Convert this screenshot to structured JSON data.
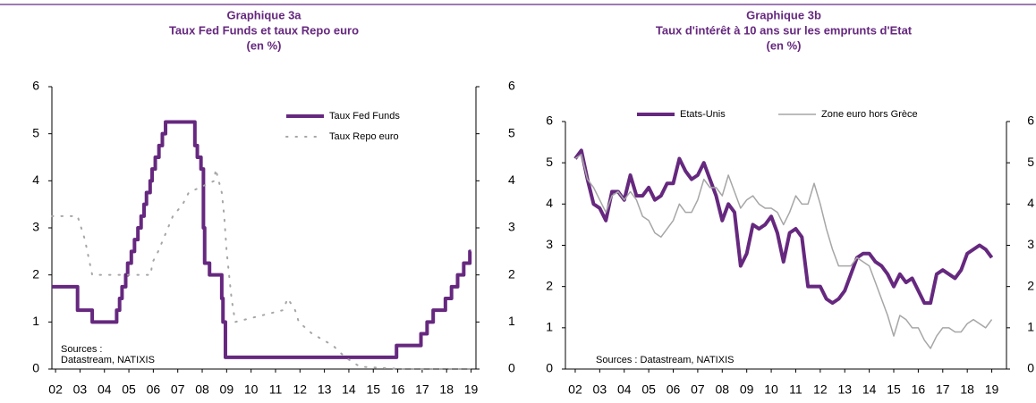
{
  "chart_data": [
    {
      "type": "line",
      "title": [
        "Graphique 3a",
        "Taux Fed Funds et taux Repo euro",
        "(en %)"
      ],
      "annotations": [
        "Sources :",
        "Datastream,  NATIXIS"
      ],
      "legend": "upper right",
      "xlim": [
        2001.85,
        2019.2
      ],
      "xticks": [
        {
          "value": 2002,
          "label": "02"
        },
        {
          "value": 2003,
          "label": "03"
        },
        {
          "value": 2004,
          "label": "04"
        },
        {
          "value": 2005,
          "label": "05"
        },
        {
          "value": 2006,
          "label": "06"
        },
        {
          "value": 2007,
          "label": "07"
        },
        {
          "value": 2008,
          "label": "08"
        },
        {
          "value": 2009,
          "label": "09"
        },
        {
          "value": 2010,
          "label": "10"
        },
        {
          "value": 2011,
          "label": "11"
        },
        {
          "value": 2012,
          "label": "12"
        },
        {
          "value": 2013,
          "label": "13"
        },
        {
          "value": 2014,
          "label": "14"
        },
        {
          "value": 2015,
          "label": "15"
        },
        {
          "value": 2016,
          "label": "16"
        },
        {
          "value": 2017,
          "label": "17"
        },
        {
          "value": 2018,
          "label": "18"
        },
        {
          "value": 2019,
          "label": "19"
        }
      ],
      "ylim": [
        0,
        6
      ],
      "yticks": [
        0,
        1,
        2,
        3,
        4,
        5,
        6
      ],
      "y2lim": [
        0,
        6
      ],
      "y2ticks": [
        0,
        1,
        2,
        3,
        4,
        5,
        6
      ],
      "series": [
        {
          "name": "Taux Fed Funds",
          "color": "#66287f",
          "style": "step",
          "line_width": 4,
          "x": [
            2001.85,
            2002.9,
            2003.5,
            2004.5,
            2004.62,
            2004.72,
            2004.87,
            2004.95,
            2005.1,
            2005.23,
            2005.37,
            2005.5,
            2005.62,
            2005.72,
            2005.87,
            2005.95,
            2006.08,
            2006.23,
            2006.37,
            2006.5,
            2007.7,
            2007.8,
            2007.95,
            2008.05,
            2008.1,
            2008.3,
            2008.8,
            2008.85,
            2008.95,
            2015.95,
            2016.95,
            2017.2,
            2017.45,
            2017.95,
            2018.2,
            2018.45,
            2018.7,
            2018.95,
            2019.0
          ],
          "values": [
            1.75,
            1.25,
            1.0,
            1.25,
            1.5,
            1.75,
            2.0,
            2.25,
            2.5,
            2.75,
            3.0,
            3.25,
            3.5,
            3.75,
            4.0,
            4.25,
            4.5,
            4.75,
            5.0,
            5.25,
            4.75,
            4.5,
            4.25,
            3.0,
            2.25,
            2.0,
            1.5,
            1.0,
            0.25,
            0.5,
            0.75,
            1.0,
            1.25,
            1.5,
            1.75,
            2.0,
            2.25,
            2.5,
            2.5
          ]
        },
        {
          "name": "Taux Repo euro",
          "color": "#a6a6a6",
          "style": "dotted",
          "line_width": 2,
          "x": [
            2001.85,
            2002.9,
            2003.2,
            2003.5,
            2005.9,
            2005.95,
            2006.2,
            2006.4,
            2006.6,
            2006.8,
            2007.2,
            2007.45,
            2008.5,
            2008.55,
            2008.8,
            2008.9,
            2009.0,
            2009.1,
            2009.2,
            2009.35,
            2011.3,
            2011.5,
            2011.8,
            2011.95,
            2012.5,
            2013.35,
            2013.85,
            2014.45,
            2016.2,
            2019.0
          ],
          "values": [
            3.25,
            3.25,
            2.75,
            2.0,
            2.0,
            2.25,
            2.5,
            2.75,
            3.0,
            3.25,
            3.5,
            3.75,
            4.0,
            4.25,
            3.75,
            3.25,
            2.5,
            2.0,
            1.5,
            1.0,
            1.25,
            1.5,
            1.25,
            1.0,
            0.75,
            0.5,
            0.25,
            0.05,
            0.0,
            0.0
          ]
        }
      ]
    },
    {
      "type": "line",
      "title": [
        "Graphique 3b",
        "Taux d'intérêt à 10 ans sur les emprunts d'Etat",
        "(en %)"
      ],
      "annotations": [
        "Sources : Datastream,  NATIXIS"
      ],
      "legend": "upper center",
      "xlim": [
        2001.6,
        2019.6
      ],
      "xticks": [
        {
          "value": 2002,
          "label": "02"
        },
        {
          "value": 2003,
          "label": "03"
        },
        {
          "value": 2004,
          "label": "04"
        },
        {
          "value": 2005,
          "label": "05"
        },
        {
          "value": 2006,
          "label": "06"
        },
        {
          "value": 2007,
          "label": "07"
        },
        {
          "value": 2008,
          "label": "08"
        },
        {
          "value": 2009,
          "label": "09"
        },
        {
          "value": 2010,
          "label": "10"
        },
        {
          "value": 2011,
          "label": "11"
        },
        {
          "value": 2012,
          "label": "12"
        },
        {
          "value": 2013,
          "label": "13"
        },
        {
          "value": 2014,
          "label": "14"
        },
        {
          "value": 2015,
          "label": "15"
        },
        {
          "value": 2016,
          "label": "16"
        },
        {
          "value": 2017,
          "label": "17"
        },
        {
          "value": 2018,
          "label": "18"
        },
        {
          "value": 2019,
          "label": "19"
        }
      ],
      "ylim": [
        0,
        6
      ],
      "yticks": [
        0,
        1,
        2,
        3,
        4,
        5,
        6
      ],
      "y2lim": [
        0,
        6
      ],
      "y2ticks": [
        0,
        1,
        2,
        3,
        4,
        5,
        6
      ],
      "series": [
        {
          "name": "Etats-Unis",
          "color": "#66287f",
          "style": "solid",
          "line_width": 4,
          "x": [
            2002,
            2002.25,
            2002.5,
            2002.75,
            2003,
            2003.25,
            2003.5,
            2003.75,
            2004,
            2004.25,
            2004.5,
            2004.75,
            2005,
            2005.25,
            2005.5,
            2005.75,
            2006,
            2006.25,
            2006.5,
            2006.75,
            2007,
            2007.25,
            2007.5,
            2007.75,
            2008,
            2008.25,
            2008.5,
            2008.75,
            2009,
            2009.25,
            2009.5,
            2009.75,
            2010,
            2010.25,
            2010.5,
            2010.75,
            2011,
            2011.25,
            2011.5,
            2011.75,
            2012,
            2012.25,
            2012.5,
            2012.75,
            2013,
            2013.25,
            2013.5,
            2013.75,
            2014,
            2014.25,
            2014.5,
            2014.75,
            2015,
            2015.25,
            2015.5,
            2015.75,
            2016,
            2016.25,
            2016.5,
            2016.75,
            2017,
            2017.25,
            2017.5,
            2017.75,
            2018,
            2018.25,
            2018.5,
            2018.75,
            2019
          ],
          "values": [
            5.1,
            5.3,
            4.6,
            4.0,
            3.9,
            3.6,
            4.3,
            4.3,
            4.1,
            4.7,
            4.2,
            4.2,
            4.4,
            4.1,
            4.2,
            4.5,
            4.5,
            5.1,
            4.8,
            4.6,
            4.7,
            5.0,
            4.6,
            4.2,
            3.6,
            4.0,
            3.8,
            2.5,
            2.8,
            3.5,
            3.4,
            3.5,
            3.7,
            3.3,
            2.6,
            3.3,
            3.4,
            3.2,
            2.0,
            2.0,
            2.0,
            1.7,
            1.6,
            1.7,
            1.9,
            2.3,
            2.7,
            2.8,
            2.8,
            2.6,
            2.5,
            2.3,
            2.0,
            2.3,
            2.1,
            2.2,
            1.9,
            1.6,
            1.6,
            2.3,
            2.4,
            2.3,
            2.2,
            2.4,
            2.8,
            2.9,
            3.0,
            2.9,
            2.7
          ]
        },
        {
          "name": "Zone euro hors Grèce",
          "color": "#a6a6a6",
          "style": "solid",
          "line_width": 1.5,
          "x": [
            2002,
            2002.25,
            2002.5,
            2002.75,
            2003,
            2003.25,
            2003.5,
            2003.75,
            2004,
            2004.25,
            2004.5,
            2004.75,
            2005,
            2005.25,
            2005.5,
            2005.75,
            2006,
            2006.25,
            2006.5,
            2006.75,
            2007,
            2007.25,
            2007.5,
            2007.75,
            2008,
            2008.25,
            2008.5,
            2008.75,
            2009,
            2009.25,
            2009.5,
            2009.75,
            2010,
            2010.25,
            2010.5,
            2010.75,
            2011,
            2011.25,
            2011.5,
            2011.75,
            2012,
            2012.25,
            2012.5,
            2012.75,
            2013,
            2013.25,
            2013.5,
            2013.75,
            2014,
            2014.25,
            2014.5,
            2014.75,
            2015,
            2015.25,
            2015.5,
            2015.75,
            2016,
            2016.25,
            2016.5,
            2016.75,
            2017,
            2017.25,
            2017.5,
            2017.75,
            2018,
            2018.25,
            2018.5,
            2018.75,
            2019
          ],
          "values": [
            5.1,
            5.2,
            4.6,
            4.4,
            4.1,
            3.8,
            4.2,
            4.3,
            4.1,
            4.3,
            4.1,
            3.7,
            3.6,
            3.3,
            3.2,
            3.4,
            3.6,
            4.0,
            3.8,
            3.8,
            4.1,
            4.6,
            4.4,
            4.4,
            4.2,
            4.7,
            4.3,
            3.9,
            4.1,
            4.2,
            4.0,
            3.9,
            3.9,
            3.8,
            3.5,
            3.8,
            4.2,
            4.0,
            4.0,
            4.5,
            4.0,
            3.4,
            2.9,
            2.5,
            2.5,
            2.5,
            2.7,
            2.6,
            2.5,
            2.1,
            1.7,
            1.3,
            0.8,
            1.3,
            1.2,
            1.0,
            1.0,
            0.7,
            0.5,
            0.8,
            1.0,
            1.0,
            0.9,
            0.9,
            1.1,
            1.2,
            1.1,
            1.0,
            1.2
          ]
        }
      ]
    }
  ]
}
